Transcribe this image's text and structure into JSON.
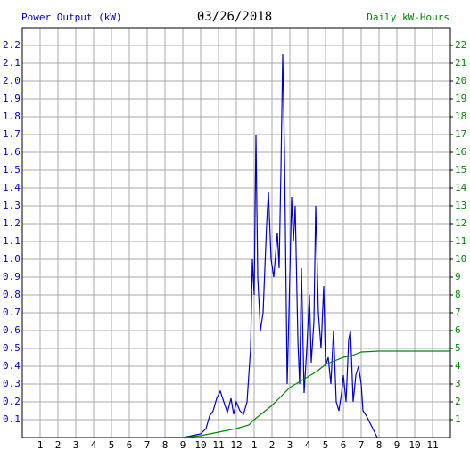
{
  "chart_data": {
    "type": "line",
    "title": "03/26/2018",
    "y_label": "Power Output (kW)",
    "y2_label": "Daily kW-Hours",
    "xlim": [
      0,
      24
    ],
    "ylim": [
      0,
      2.3
    ],
    "y2lim": [
      0,
      23
    ],
    "grid": true,
    "xticks": [
      1,
      2,
      3,
      4,
      5,
      6,
      7,
      8,
      9,
      10,
      11,
      12,
      {
        "value": 13,
        "label": "1"
      },
      {
        "value": 14,
        "label": "2"
      },
      {
        "value": 15,
        "label": "3"
      },
      {
        "value": 16,
        "label": "4"
      },
      {
        "value": 17,
        "label": "5"
      },
      {
        "value": 18,
        "label": "6"
      },
      {
        "value": 19,
        "label": "7"
      },
      {
        "value": 20,
        "label": "8"
      },
      {
        "value": 21,
        "label": "9"
      },
      {
        "value": 22,
        "label": "10"
      },
      {
        "value": 23,
        "label": "11"
      }
    ],
    "yticks": [
      0.1,
      0.2,
      0.3,
      0.4,
      0.5,
      0.6,
      0.7,
      0.8,
      0.9,
      {
        "value": 1,
        "label": "1.0"
      },
      1.1,
      1.2,
      1.3,
      1.4,
      1.5,
      1.6,
      1.7,
      1.8,
      1.9,
      {
        "value": 2,
        "label": "2.0"
      },
      2.1,
      2.2
    ],
    "y2ticks": [
      1,
      2,
      3,
      4,
      5,
      6,
      7,
      8,
      9,
      10,
      11,
      12,
      13,
      14,
      15,
      16,
      17,
      18,
      19,
      20,
      21,
      22
    ],
    "series": [
      {
        "name": "Power Output (kW)",
        "color": "#0000cc",
        "x": [
          8,
          9,
          9.5,
          10,
          10.3,
          10.5,
          10.7,
          10.9,
          11.1,
          11.3,
          11.5,
          11.7,
          11.85,
          12,
          12.2,
          12.4,
          12.6,
          12.8,
          12.9,
          13,
          13.1,
          13.2,
          13.35,
          13.5,
          13.7,
          13.8,
          13.95,
          14.1,
          14.3,
          14.4,
          14.5,
          14.6,
          14.7,
          14.85,
          14.95,
          15.1,
          15.2,
          15.3,
          15.45,
          15.55,
          15.65,
          15.8,
          15.95,
          16.1,
          16.2,
          16.35,
          16.45,
          16.6,
          16.75,
          16.9,
          17,
          17.15,
          17.3,
          17.45,
          17.6,
          17.75,
          17.9,
          18,
          18.15,
          18.3,
          18.4,
          18.55,
          18.7,
          18.85,
          19,
          19.1,
          19.3,
          19.5,
          19.7,
          19.9,
          20
        ],
        "values": [
          0,
          0,
          0.01,
          0.02,
          0.05,
          0.12,
          0.15,
          0.22,
          0.26,
          0.2,
          0.14,
          0.22,
          0.13,
          0.2,
          0.15,
          0.13,
          0.2,
          0.5,
          1.0,
          0.8,
          1.7,
          0.9,
          0.6,
          0.7,
          1.2,
          1.38,
          1.0,
          0.9,
          1.15,
          0.95,
          1.5,
          2.15,
          1.6,
          0.3,
          0.7,
          1.35,
          1.1,
          1.3,
          0.55,
          0.3,
          0.95,
          0.25,
          0.5,
          0.8,
          0.42,
          0.65,
          1.3,
          0.7,
          0.5,
          0.85,
          0.4,
          0.45,
          0.3,
          0.6,
          0.2,
          0.15,
          0.25,
          0.35,
          0.2,
          0.55,
          0.6,
          0.2,
          0.35,
          0.4,
          0.3,
          0.15,
          0.12,
          0.08,
          0.04,
          0,
          0
        ]
      },
      {
        "name": "Daily kW-Hours",
        "color": "#008800",
        "axis": "y2",
        "x": [
          9,
          10,
          11,
          12,
          12.7,
          13,
          13.5,
          14,
          14.5,
          15,
          15.5,
          16,
          16.5,
          17,
          17.5,
          18,
          18.5,
          19,
          20,
          21,
          24
        ],
        "values": [
          0,
          0.1,
          0.3,
          0.5,
          0.7,
          1.0,
          1.4,
          1.8,
          2.3,
          2.8,
          3.1,
          3.4,
          3.7,
          4.1,
          4.3,
          4.5,
          4.6,
          4.8,
          4.85,
          4.85,
          4.85
        ]
      }
    ]
  }
}
